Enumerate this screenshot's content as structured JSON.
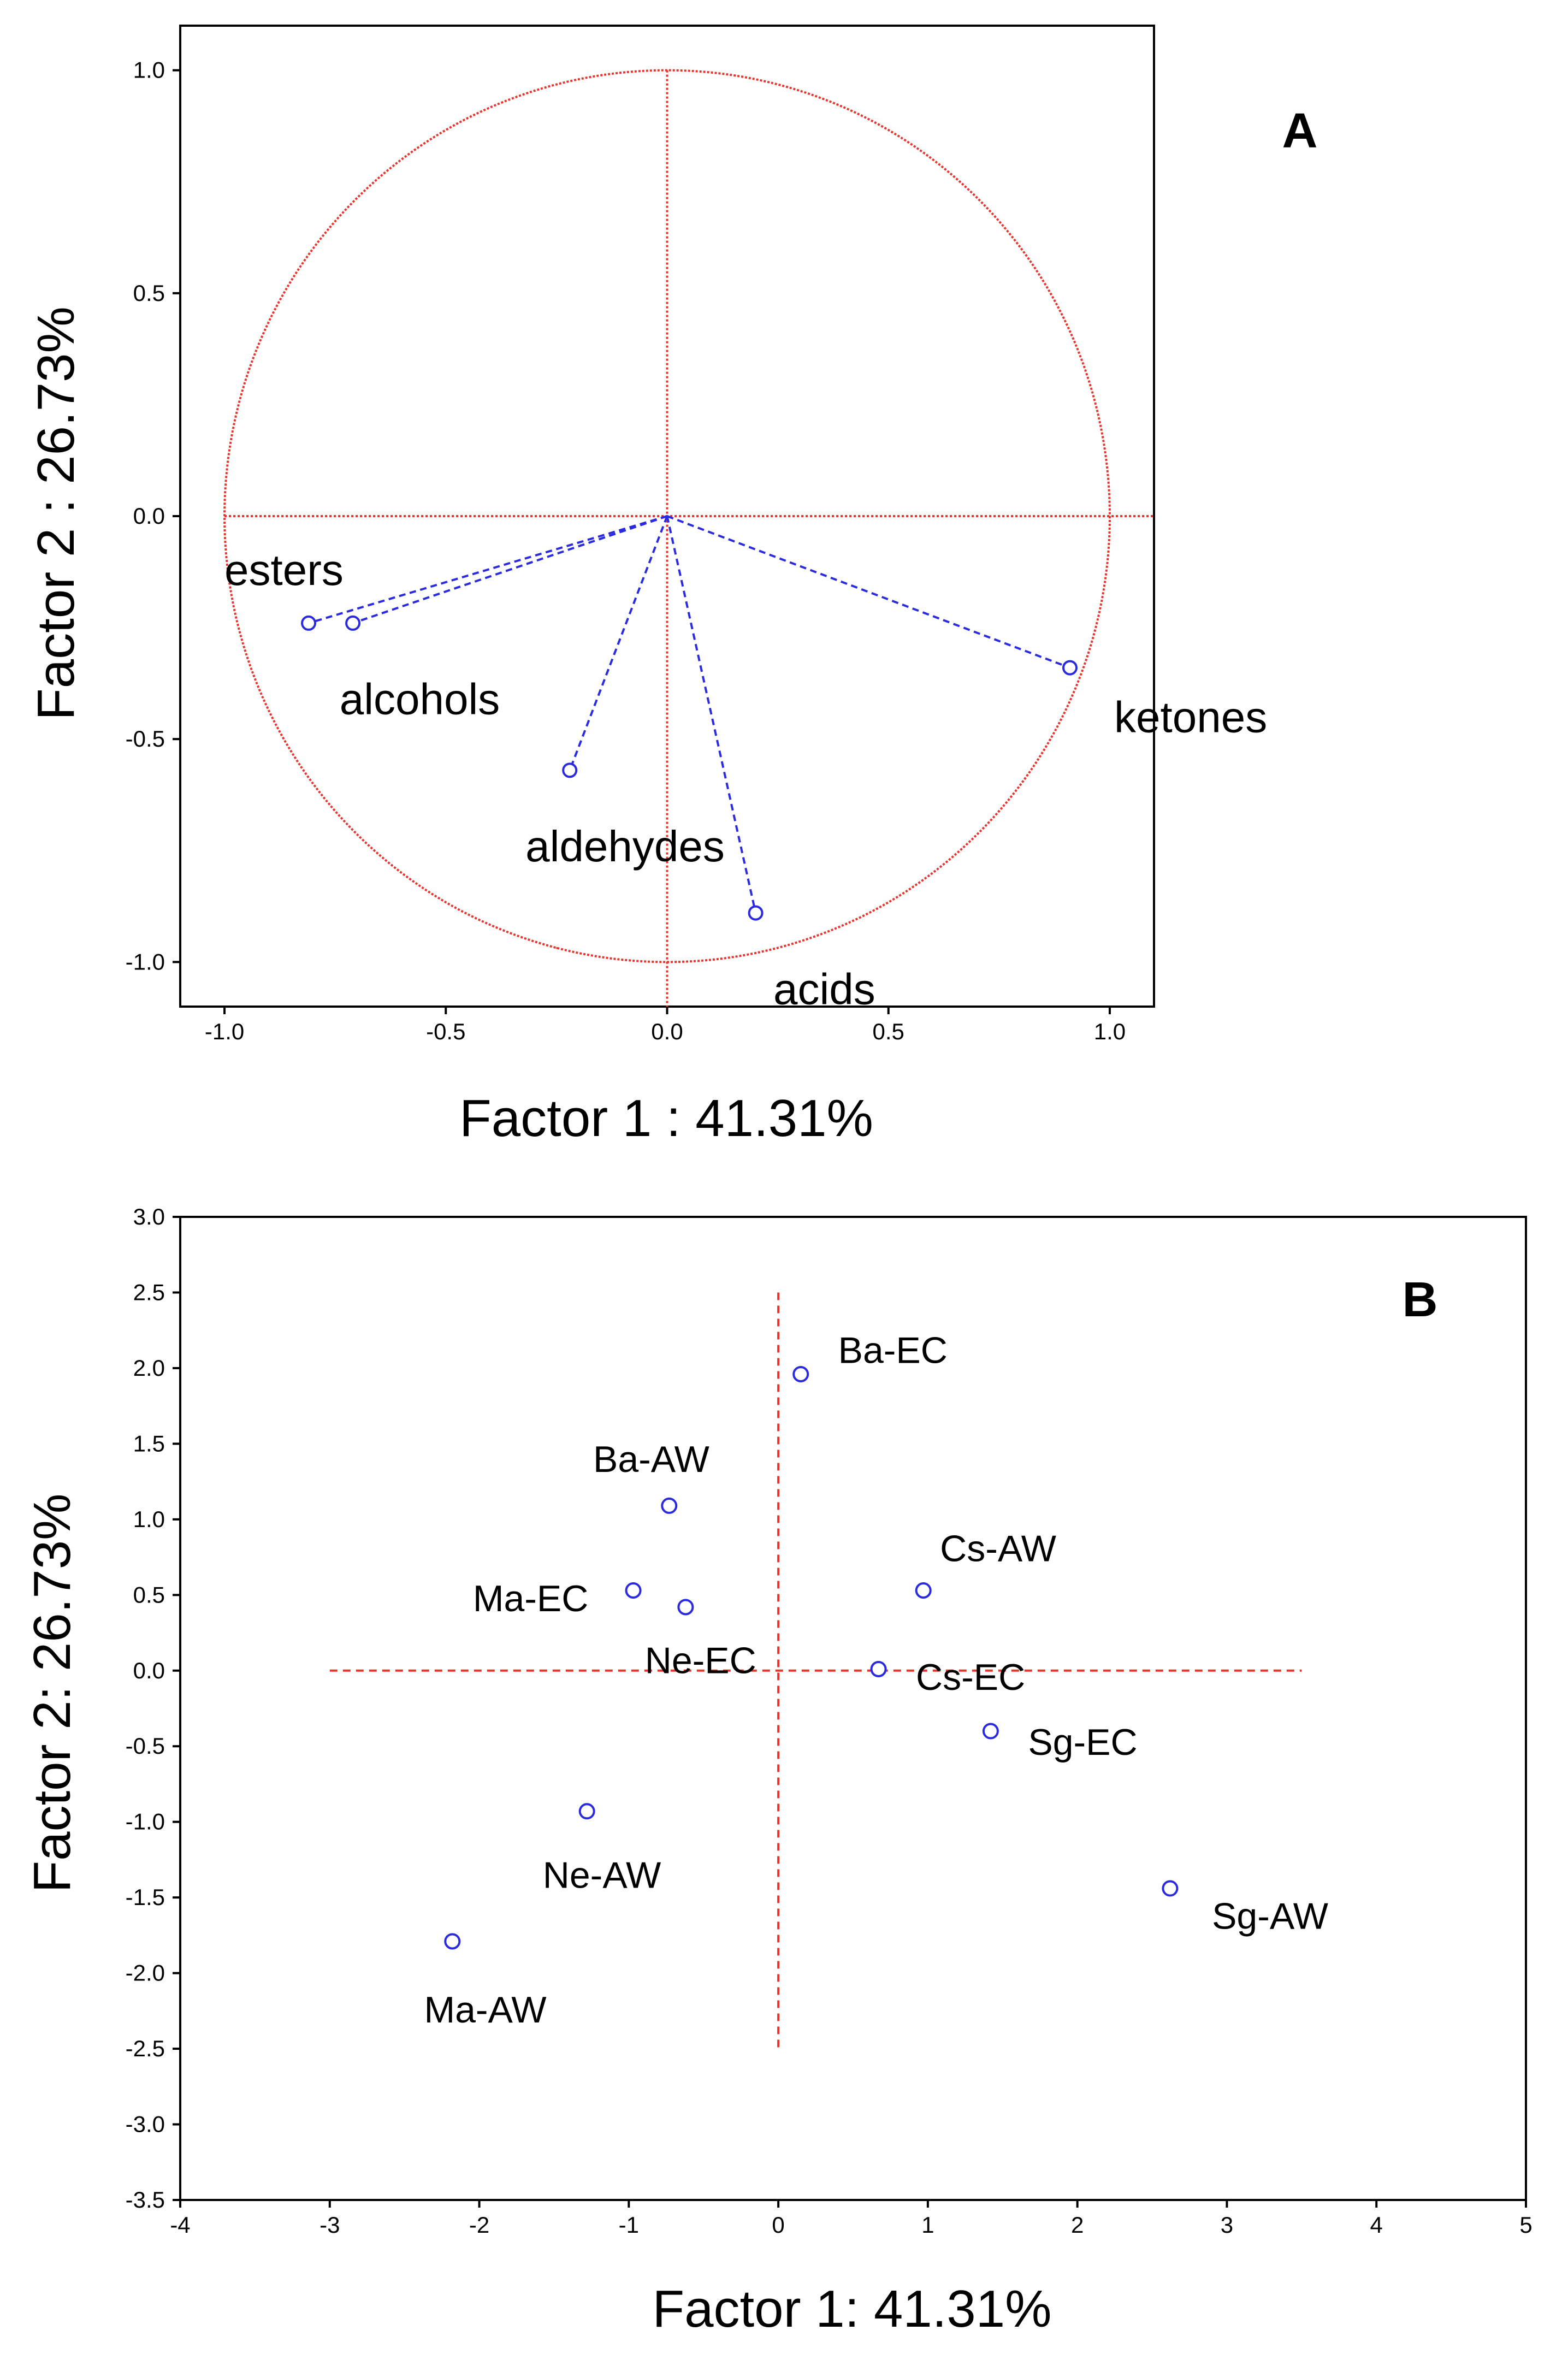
{
  "chart_data": [
    {
      "type": "scatter",
      "panel_label": "A",
      "xlabel": "Factor 1 : 41.31%",
      "ylabel": "Factor 2 : 26.73%",
      "xlim": [
        -1.1,
        1.1
      ],
      "ylim": [
        -1.1,
        1.1
      ],
      "xticks": [
        -1.0,
        -0.5,
        0.0,
        0.5,
        1.0
      ],
      "yticks": [
        1.0,
        0.5,
        0.0,
        -0.5,
        -1.0
      ],
      "tick_labels": [
        "-1.0",
        "-0.5",
        "0.0",
        "0.5",
        "1.0"
      ],
      "unit_circle": true,
      "reference_lines": {
        "x": 0,
        "y": 0
      },
      "loading_vectors": true,
      "points": [
        {
          "label": "esters",
          "x": -0.81,
          "y": -0.24
        },
        {
          "label": "alcohols",
          "x": -0.71,
          "y": -0.24
        },
        {
          "label": "aldehydes",
          "x": -0.22,
          "y": -0.57
        },
        {
          "label": "acids",
          "x": 0.2,
          "y": -0.89
        },
        {
          "label": "ketones",
          "x": 0.91,
          "y": -0.34
        }
      ],
      "colors": {
        "circle": "#e8342f",
        "vectors": "#2a2ae0",
        "refline": "#e8342f"
      }
    },
    {
      "type": "scatter",
      "panel_label": "B",
      "xlabel": "Factor 1: 41.31%",
      "ylabel": "Factor 2: 26.73%",
      "xlim": [
        -4,
        5
      ],
      "ylim": [
        -3.5,
        3.0
      ],
      "xticks": [
        -4,
        -3,
        -2,
        -1,
        0,
        1,
        2,
        3,
        4,
        5
      ],
      "yticks": [
        3.0,
        2.5,
        2.0,
        1.5,
        1.0,
        0.5,
        0.0,
        -0.5,
        -1.0,
        -1.5,
        -2.0,
        -2.5,
        -3.0,
        -3.5
      ],
      "xtick_labels": [
        "-4",
        "-3",
        "-2",
        "-1",
        "0",
        "1",
        "2",
        "3",
        "4",
        "5"
      ],
      "ytick_labels": [
        "3.0",
        "2.5",
        "2.0",
        "1.5",
        "1.0",
        "0.5",
        "0.0",
        "-0.5",
        "-1.0",
        "-1.5",
        "-2.0",
        "-2.5",
        "-3.0",
        "-3.5"
      ],
      "reference_lines": {
        "x": 0,
        "y": 0,
        "x_span": [
          -3.0,
          3.5
        ],
        "y_span": [
          -2.5,
          2.5
        ]
      },
      "points": [
        {
          "label": "Ba-EC",
          "x": 0.15,
          "y": 1.96
        },
        {
          "label": "Ba-AW",
          "x": -0.73,
          "y": 1.09
        },
        {
          "label": "Ma-EC",
          "x": -0.97,
          "y": 0.53
        },
        {
          "label": "Ne-EC",
          "x": -0.62,
          "y": 0.42
        },
        {
          "label": "Cs-AW",
          "x": 0.97,
          "y": 0.53
        },
        {
          "label": "Cs-EC",
          "x": 0.67,
          "y": 0.01
        },
        {
          "label": "Sg-EC",
          "x": 1.42,
          "y": -0.4
        },
        {
          "label": "Ne-AW",
          "x": -1.28,
          "y": -0.93
        },
        {
          "label": "Ma-AW",
          "x": -2.18,
          "y": -1.79
        },
        {
          "label": "Sg-AW",
          "x": 2.62,
          "y": -1.44
        }
      ],
      "colors": {
        "points": "#2a2ae0",
        "refline": "#e8342f"
      }
    }
  ]
}
